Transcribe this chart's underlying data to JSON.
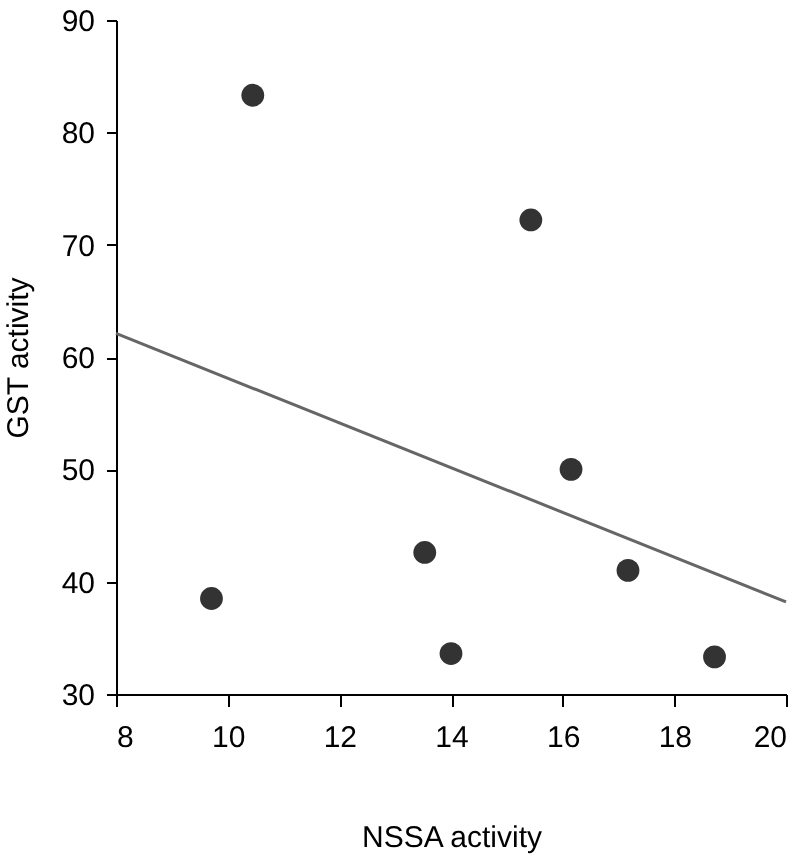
{
  "chart_data": {
    "type": "scatter",
    "xlabel": "NSSA activity",
    "ylabel": "GST activity",
    "xlim": [
      8,
      20
    ],
    "xticks": [
      8,
      10,
      12,
      14,
      16,
      18,
      20
    ],
    "ylim": [
      30,
      90
    ],
    "yticks": [
      30,
      40,
      50,
      60,
      70,
      80,
      90
    ],
    "grid": false,
    "series": [
      {
        "marker": "circle",
        "color": "#333333",
        "x": [
          9.71,
          10.45,
          13.53,
          14.0,
          15.43,
          16.15,
          17.17,
          18.72
        ],
        "values": [
          38.5,
          83.3,
          42.6,
          33.6,
          72.2,
          50.0,
          41.0,
          33.3
        ]
      },
      {
        "type": "line",
        "color": "#666666",
        "line_style": "solid",
        "x": [
          8,
          20
        ],
        "values": [
          62.1,
          38.2
        ]
      }
    ]
  }
}
